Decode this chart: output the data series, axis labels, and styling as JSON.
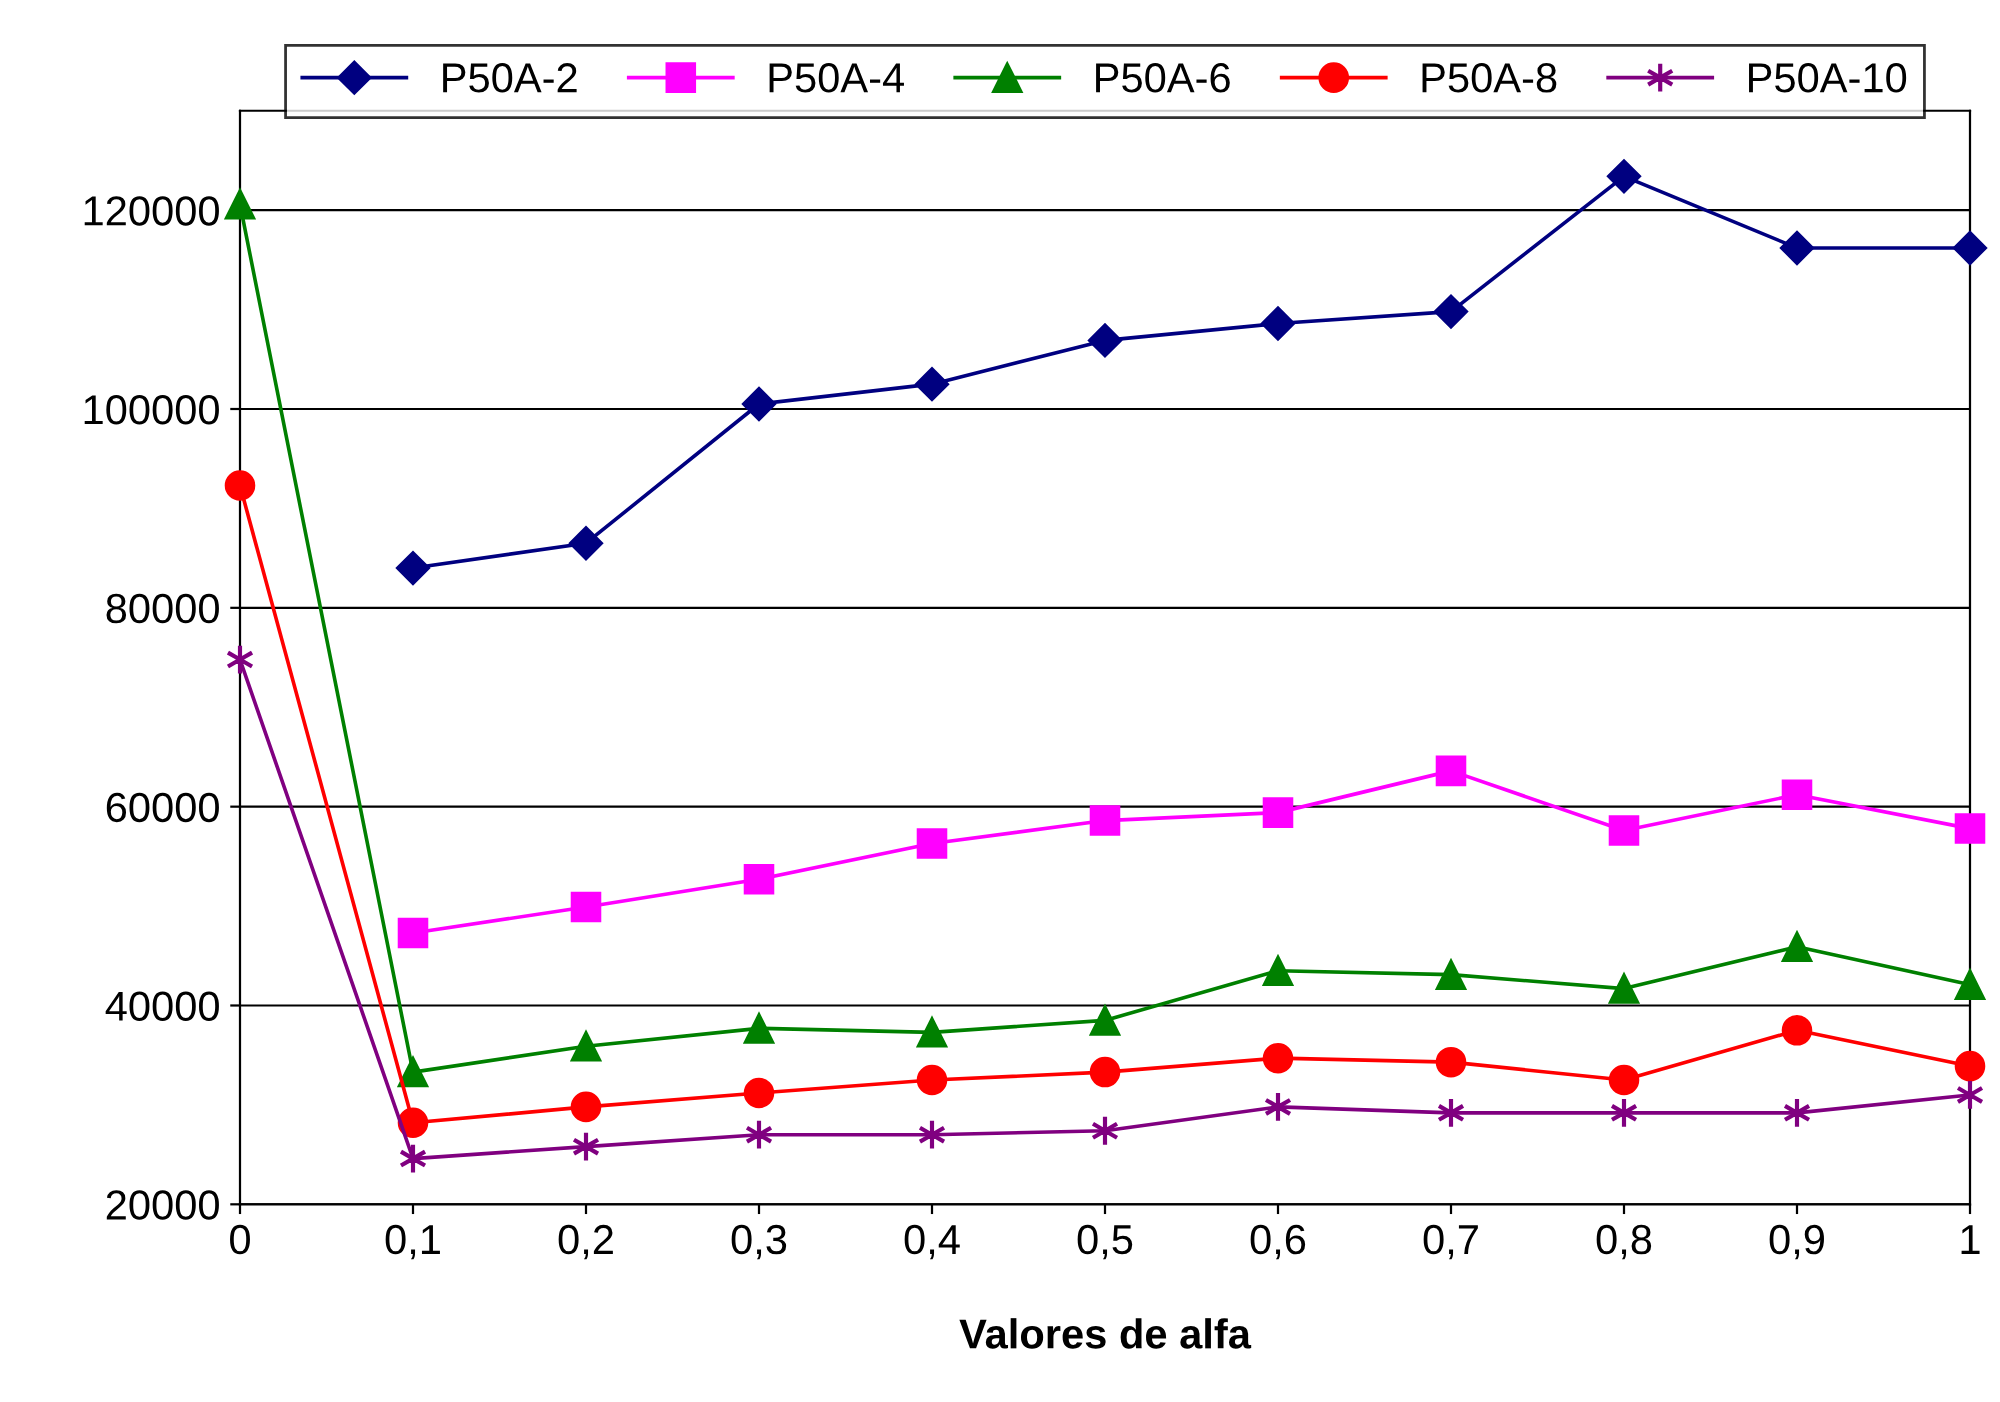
{
  "chart_data": {
    "type": "line",
    "xlabel": "Valores de alfa",
    "x": [
      0,
      0.1,
      0.2,
      0.3,
      0.4,
      0.5,
      0.6,
      0.7,
      0.8,
      0.9,
      1
    ],
    "series": [
      {
        "name": "P50A-2",
        "color": "#000080",
        "marker": "diamond",
        "values": [
          null,
          84000,
          86500,
          100500,
          102500,
          106900,
          108600,
          109800,
          123400,
          116200,
          116200
        ]
      },
      {
        "name": "P50A-4",
        "color": "#ff00ff",
        "marker": "square",
        "values": [
          null,
          47300,
          49900,
          52700,
          56300,
          58600,
          59400,
          63600,
          57600,
          61200,
          57800
        ]
      },
      {
        "name": "P50A-6",
        "color": "#008000",
        "marker": "triangle",
        "values": [
          120600,
          33300,
          35900,
          37700,
          37300,
          38500,
          43500,
          43100,
          41700,
          45900,
          42100
        ]
      },
      {
        "name": "P50A-8",
        "color": "#ff0000",
        "marker": "circle",
        "values": [
          92300,
          28200,
          29800,
          31200,
          32500,
          33300,
          34700,
          34300,
          32500,
          37500,
          33900
        ]
      },
      {
        "name": "P50A-10",
        "color": "#800080",
        "marker": "cross",
        "values": [
          74800,
          24600,
          25800,
          27000,
          27000,
          27400,
          29800,
          29200,
          29200,
          29200,
          31000
        ]
      }
    ],
    "xlim": [
      0,
      1
    ],
    "xticks": [
      0,
      {
        "value": 0.1,
        "label": "0,1"
      },
      {
        "value": 0.2,
        "label": "0,2"
      },
      {
        "value": 0.3,
        "label": "0,3"
      },
      {
        "value": 0.4,
        "label": "0,4"
      },
      {
        "value": 0.5,
        "label": "0,5"
      },
      {
        "value": 0.6,
        "label": "0,6"
      },
      {
        "value": 0.7,
        "label": "0,7"
      },
      {
        "value": 0.8,
        "label": "0,8"
      },
      {
        "value": 0.9,
        "label": "0,9"
      },
      1
    ],
    "ylim": [
      20000,
      130000
    ],
    "yticks": [
      20000,
      40000,
      60000,
      80000,
      100000,
      120000
    ],
    "grid": "y",
    "legend": "top",
    "line_style": "solid"
  }
}
